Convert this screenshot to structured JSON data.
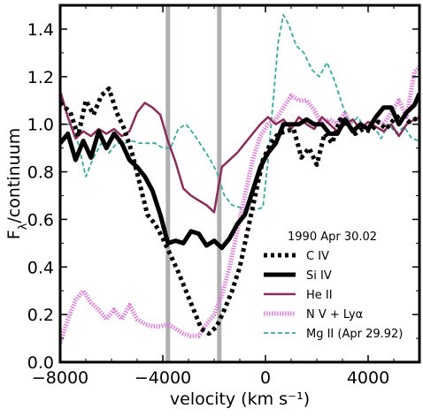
{
  "chart_data": {
    "type": "line",
    "xlabel": "velocity (km s⁻¹)",
    "ylabel": "F",
    "ylabel_sub": "λ",
    "ylabel_rest": "/continuum",
    "xlim": [
      -8000,
      6000
    ],
    "ylim": [
      0.0,
      1.5
    ],
    "xticks": [
      -8000,
      -4000,
      0,
      4000
    ],
    "xtick_labels": [
      "−8000",
      "−4000",
      "0",
      "4000"
    ],
    "yticks": [
      0.0,
      0.2,
      0.4,
      0.6,
      0.8,
      1.0,
      1.2,
      1.4
    ],
    "ytick_labels": [
      "0.0",
      "0.2",
      "0.4",
      "0.6",
      "0.8",
      "1.0",
      "1.2",
      "1.4"
    ],
    "vlines": [
      -3800,
      -1800
    ],
    "vline_color": "#b0b0b0",
    "legend_title": "1990 Apr 30.02",
    "legend_position": "lower-right",
    "series": [
      {
        "name": "C IV",
        "color": "#000000",
        "style": "dotted-thick",
        "points": [
          [
            -8000,
            1.09
          ],
          [
            -7600,
            1.05
          ],
          [
            -7300,
            0.95
          ],
          [
            -7000,
            1.1
          ],
          [
            -6700,
            1.04
          ],
          [
            -6400,
            1.12
          ],
          [
            -6100,
            1.15
          ],
          [
            -5800,
            1.05
          ],
          [
            -5500,
            0.98
          ],
          [
            -5200,
            0.88
          ],
          [
            -4900,
            0.75
          ],
          [
            -4600,
            0.62
          ],
          [
            -4300,
            0.58
          ],
          [
            -4000,
            0.52
          ],
          [
            -3700,
            0.45
          ],
          [
            -3400,
            0.38
          ],
          [
            -3100,
            0.3
          ],
          [
            -2800,
            0.22
          ],
          [
            -2500,
            0.14
          ],
          [
            -2200,
            0.12
          ],
          [
            -1900,
            0.15
          ],
          [
            -1600,
            0.22
          ],
          [
            -1300,
            0.3
          ],
          [
            -1000,
            0.4
          ],
          [
            -700,
            0.55
          ],
          [
            -400,
            0.7
          ],
          [
            -100,
            0.85
          ],
          [
            200,
            0.92
          ],
          [
            500,
            0.96
          ],
          [
            800,
            0.97
          ],
          [
            1100,
            0.98
          ],
          [
            1400,
            0.86
          ],
          [
            1700,
            0.9
          ],
          [
            2000,
            0.83
          ],
          [
            2300,
            0.96
          ],
          [
            2600,
            0.92
          ],
          [
            2900,
            1.02
          ],
          [
            3200,
            1.0
          ],
          [
            3500,
            0.96
          ],
          [
            3800,
            0.98
          ],
          [
            4100,
            0.97
          ],
          [
            4400,
            1.01
          ],
          [
            4700,
            0.98
          ],
          [
            5000,
            1.02
          ],
          [
            5300,
            1.04
          ],
          [
            5600,
            1.01
          ],
          [
            6000,
            1.03
          ]
        ]
      },
      {
        "name": "Si IV",
        "color": "#000000",
        "style": "solid-thick",
        "points": [
          [
            -8000,
            0.92
          ],
          [
            -7700,
            0.96
          ],
          [
            -7400,
            0.85
          ],
          [
            -7100,
            0.93
          ],
          [
            -6800,
            0.86
          ],
          [
            -6500,
            0.97
          ],
          [
            -6200,
            0.9
          ],
          [
            -5900,
            0.96
          ],
          [
            -5600,
            0.92
          ],
          [
            -5300,
            0.85
          ],
          [
            -5000,
            0.82
          ],
          [
            -4700,
            0.78
          ],
          [
            -4400,
            0.72
          ],
          [
            -4100,
            0.62
          ],
          [
            -3800,
            0.5
          ],
          [
            -3500,
            0.51
          ],
          [
            -3200,
            0.5
          ],
          [
            -2900,
            0.55
          ],
          [
            -2600,
            0.54
          ],
          [
            -2300,
            0.49
          ],
          [
            -2000,
            0.51
          ],
          [
            -1700,
            0.48
          ],
          [
            -1400,
            0.52
          ],
          [
            -1100,
            0.58
          ],
          [
            -800,
            0.62
          ],
          [
            -500,
            0.72
          ],
          [
            -200,
            0.82
          ],
          [
            100,
            0.88
          ],
          [
            400,
            0.92
          ],
          [
            700,
            1.0
          ],
          [
            1000,
            1.0
          ],
          [
            1300,
            1.0
          ],
          [
            1600,
            1.02
          ],
          [
            1900,
            1.0
          ],
          [
            2200,
            1.0
          ],
          [
            2500,
            0.96
          ],
          [
            2800,
            0.96
          ],
          [
            3100,
            1.02
          ],
          [
            3400,
            0.97
          ],
          [
            3700,
            1.0
          ],
          [
            4000,
            0.98
          ],
          [
            4300,
            1.03
          ],
          [
            4600,
            1.07
          ],
          [
            4900,
            1.07
          ],
          [
            5200,
            1.0
          ],
          [
            5500,
            1.05
          ],
          [
            5800,
            1.08
          ],
          [
            6000,
            1.13
          ]
        ]
      },
      {
        "name": "He II",
        "color": "#8b2d5a",
        "style": "solid",
        "points": [
          [
            -8000,
            1.14
          ],
          [
            -7700,
            1.03
          ],
          [
            -7400,
            0.94
          ],
          [
            -7100,
            0.97
          ],
          [
            -6800,
            0.95
          ],
          [
            -6500,
            0.98
          ],
          [
            -6200,
            0.96
          ],
          [
            -5900,
            0.98
          ],
          [
            -5600,
            0.95
          ],
          [
            -5300,
            0.97
          ],
          [
            -5000,
            1.05
          ],
          [
            -4700,
            1.09
          ],
          [
            -4400,
            1.07
          ],
          [
            -4100,
            1.04
          ],
          [
            -3800,
            0.93
          ],
          [
            -3500,
            0.84
          ],
          [
            -3200,
            0.73
          ],
          [
            -2900,
            0.7
          ],
          [
            -2600,
            0.68
          ],
          [
            -2300,
            0.66
          ],
          [
            -2000,
            0.63
          ],
          [
            -1700,
            0.82
          ],
          [
            -1400,
            0.85
          ],
          [
            -1100,
            0.88
          ],
          [
            -800,
            0.92
          ],
          [
            -500,
            0.96
          ],
          [
            -200,
            1.0
          ],
          [
            100,
            1.03
          ],
          [
            400,
            1.0
          ],
          [
            700,
            1.02
          ],
          [
            1000,
            0.98
          ],
          [
            1300,
            1.03
          ],
          [
            1600,
            1.0
          ],
          [
            1900,
            0.98
          ],
          [
            2200,
            1.03
          ],
          [
            2500,
            1.0
          ],
          [
            2800,
            0.97
          ],
          [
            3100,
            1.0
          ],
          [
            3400,
            1.02
          ],
          [
            3700,
            0.98
          ],
          [
            4000,
            1.01
          ],
          [
            4300,
            0.99
          ],
          [
            4600,
            0.97
          ],
          [
            4900,
            1.0
          ],
          [
            5200,
            0.95
          ],
          [
            5500,
            1.0
          ],
          [
            5800,
            1.02
          ],
          [
            6000,
            1.03
          ]
        ]
      },
      {
        "name": "N V + Lyα",
        "color": "#d982d6",
        "style": "dotted-dense",
        "points": [
          [
            -8000,
            0.08
          ],
          [
            -7700,
            0.18
          ],
          [
            -7400,
            0.26
          ],
          [
            -7100,
            0.3
          ],
          [
            -6800,
            0.25
          ],
          [
            -6500,
            0.22
          ],
          [
            -6200,
            0.18
          ],
          [
            -5900,
            0.22
          ],
          [
            -5600,
            0.18
          ],
          [
            -5300,
            0.24
          ],
          [
            -5000,
            0.18
          ],
          [
            -4700,
            0.16
          ],
          [
            -4400,
            0.15
          ],
          [
            -4100,
            0.15
          ],
          [
            -3800,
            0.16
          ],
          [
            -3500,
            0.14
          ],
          [
            -3200,
            0.12
          ],
          [
            -2900,
            0.11
          ],
          [
            -2600,
            0.11
          ],
          [
            -2300,
            0.16
          ],
          [
            -2000,
            0.2
          ],
          [
            -1700,
            0.28
          ],
          [
            -1400,
            0.4
          ],
          [
            -1100,
            0.55
          ],
          [
            -800,
            0.7
          ],
          [
            -500,
            0.85
          ],
          [
            -200,
            0.95
          ],
          [
            100,
            1.0
          ],
          [
            400,
            1.02
          ],
          [
            700,
            1.07
          ],
          [
            1000,
            1.12
          ],
          [
            1300,
            1.1
          ],
          [
            1600,
            1.1
          ],
          [
            1900,
            1.06
          ],
          [
            2200,
            1.0
          ],
          [
            2500,
            1.02
          ],
          [
            2800,
            1.0
          ],
          [
            3100,
            1.05
          ],
          [
            3400,
            0.97
          ],
          [
            3700,
            1.0
          ],
          [
            4000,
            0.98
          ],
          [
            4300,
            1.02
          ],
          [
            4600,
            1.0
          ],
          [
            4900,
            1.05
          ],
          [
            5200,
            1.1
          ],
          [
            5500,
            1.03
          ],
          [
            5800,
            1.22
          ],
          [
            6000,
            1.24
          ]
        ]
      },
      {
        "name": "Mg II (Apr 29.92)",
        "color": "#3aa89a",
        "style": "dashed",
        "points": [
          [
            -8000,
            1.0
          ],
          [
            -7600,
            1.0
          ],
          [
            -7300,
            0.92
          ],
          [
            -7000,
            0.78
          ],
          [
            -6700,
            0.86
          ],
          [
            -6400,
            0.92
          ],
          [
            -6100,
            0.88
          ],
          [
            -5800,
            0.92
          ],
          [
            -5500,
            0.92
          ],
          [
            -5200,
            0.93
          ],
          [
            -4900,
            0.92
          ],
          [
            -4600,
            0.92
          ],
          [
            -4300,
            0.92
          ],
          [
            -4000,
            0.9
          ],
          [
            -3700,
            0.9
          ],
          [
            -3400,
            0.98
          ],
          [
            -3100,
            1.0
          ],
          [
            -2800,
            0.96
          ],
          [
            -2500,
            0.91
          ],
          [
            -2200,
            0.86
          ],
          [
            -1900,
            0.8
          ],
          [
            -1600,
            0.7
          ],
          [
            -1300,
            0.66
          ],
          [
            -1000,
            0.65
          ],
          [
            -700,
            0.64
          ],
          [
            -400,
            0.64
          ],
          [
            -100,
            0.65
          ],
          [
            100,
            0.85
          ],
          [
            300,
            1.1
          ],
          [
            500,
            1.35
          ],
          [
            700,
            1.46
          ],
          [
            900,
            1.42
          ],
          [
            1200,
            1.33
          ],
          [
            1500,
            1.3
          ],
          [
            1800,
            1.23
          ],
          [
            2100,
            1.2
          ],
          [
            2400,
            1.26
          ],
          [
            2700,
            1.18
          ],
          [
            3000,
            1.08
          ],
          [
            3300,
            1.0
          ],
          [
            3600,
            1.03
          ],
          [
            3900,
            0.98
          ],
          [
            4200,
            1.0
          ],
          [
            4500,
            0.94
          ],
          [
            4800,
            1.0
          ],
          [
            5100,
            0.96
          ],
          [
            5400,
            0.99
          ],
          [
            5700,
            0.94
          ],
          [
            6000,
            0.93
          ]
        ]
      }
    ]
  }
}
